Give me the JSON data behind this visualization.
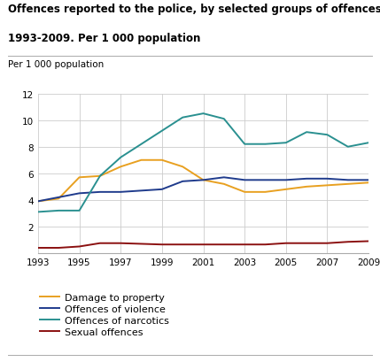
{
  "title_line1": "Offences reported to the police, by selected groups of offences.",
  "title_line2": "1993-2009. Per 1 000 population",
  "ylabel": "Per 1 000 population",
  "years": [
    1993,
    1994,
    1995,
    1996,
    1997,
    1998,
    1999,
    2000,
    2001,
    2002,
    2003,
    2004,
    2005,
    2006,
    2007,
    2008,
    2009
  ],
  "damage_to_property": [
    3.9,
    4.1,
    5.7,
    5.8,
    6.5,
    7.0,
    7.0,
    6.5,
    5.5,
    5.2,
    4.6,
    4.6,
    4.8,
    5.0,
    5.1,
    5.2,
    5.3
  ],
  "offences_of_violence": [
    3.9,
    4.2,
    4.5,
    4.6,
    4.6,
    4.7,
    4.8,
    5.4,
    5.5,
    5.7,
    5.5,
    5.5,
    5.5,
    5.6,
    5.6,
    5.5,
    5.5
  ],
  "offences_of_narcotics": [
    3.1,
    3.2,
    3.2,
    5.8,
    7.2,
    8.2,
    9.2,
    10.2,
    10.5,
    10.1,
    8.2,
    8.2,
    8.3,
    9.1,
    8.9,
    8.0,
    8.3
  ],
  "sexual_offences": [
    0.4,
    0.4,
    0.5,
    0.75,
    0.75,
    0.7,
    0.65,
    0.65,
    0.65,
    0.65,
    0.65,
    0.65,
    0.75,
    0.75,
    0.75,
    0.85,
    0.9
  ],
  "color_damage": "#E8A020",
  "color_violence": "#1F3B8C",
  "color_narcotics": "#2A9090",
  "color_sexual": "#8B1010",
  "ylim": [
    0,
    12
  ],
  "yticks": [
    0,
    2,
    4,
    6,
    8,
    10,
    12
  ],
  "xticks": [
    1993,
    1995,
    1997,
    1999,
    2001,
    2003,
    2005,
    2007,
    2009
  ],
  "legend_labels": [
    "Damage to property",
    "Offences of violence",
    "Offences of narcotics",
    "Sexual offences"
  ],
  "bg_color": "#ffffff",
  "plot_bg_color": "#ffffff"
}
